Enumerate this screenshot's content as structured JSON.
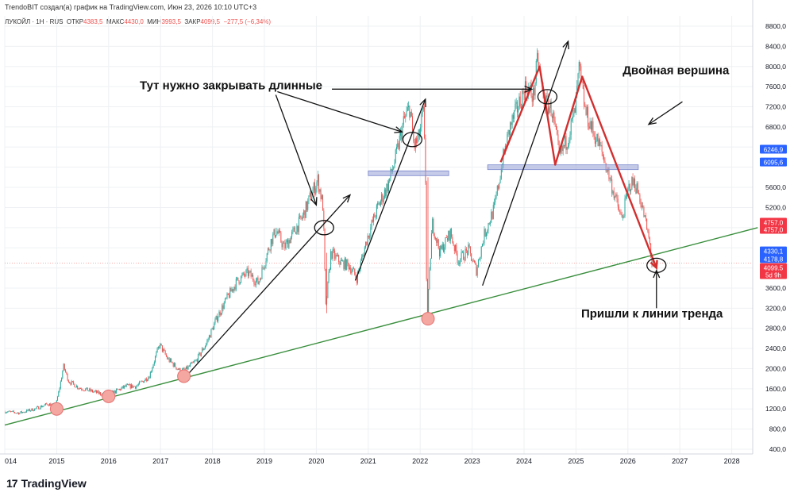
{
  "header": {
    "credit": "TrendoBIT создал(а) график на TradingView.com, Июн 23, 2026 10:10 UTC+3",
    "symbol": "ЛУКОЙЛ · 1Н · RUS",
    "open_label": "ОТКР",
    "open_value": "4383,5",
    "high_label": "МАКС",
    "high_value": "4430,0",
    "low_label": "МИН",
    "low_value": "3993,5",
    "close_label": "ЗАКР",
    "close_value": "4099,5",
    "change_value": "−277,5 (−6,34%)"
  },
  "footer": {
    "brand": "TradingView",
    "mark": "17"
  },
  "colors": {
    "up": "#26a69a",
    "down": "#ef5350",
    "trend_line": "#388e3c",
    "annotation": "#111111",
    "red_path": "#d32f2f",
    "support_band": "#9fa8da",
    "badge_blue": "#2962ff",
    "badge_red": "#f23645",
    "circle_fill": "#f4a6a0"
  },
  "chart_data": {
    "type": "candlestick",
    "title": "",
    "x_range": [
      2014.0,
      2028.5
    ],
    "y_range": [
      400,
      8800
    ],
    "x_ticks": [
      {
        "year": 2014,
        "label": "014"
      },
      {
        "year": 2015,
        "label": "2015"
      },
      {
        "year": 2016,
        "label": "2016"
      },
      {
        "year": 2017,
        "label": "2017"
      },
      {
        "year": 2018,
        "label": "2018"
      },
      {
        "year": 2019,
        "label": "2019"
      },
      {
        "year": 2020,
        "label": "2020"
      },
      {
        "year": 2021,
        "label": "2021"
      },
      {
        "year": 2022,
        "label": "2022"
      },
      {
        "year": 2023,
        "label": "2023"
      },
      {
        "year": 2024,
        "label": "2024"
      },
      {
        "year": 2025,
        "label": "2025"
      },
      {
        "year": 2026,
        "label": "2026"
      },
      {
        "year": 2027,
        "label": "2027"
      },
      {
        "year": 2028,
        "label": "2028"
      }
    ],
    "y_ticks": [
      {
        "value": 400,
        "label": "400,0"
      },
      {
        "value": 800,
        "label": "800,0"
      },
      {
        "value": 1200,
        "label": "1200,0"
      },
      {
        "value": 1600,
        "label": "1600,0"
      },
      {
        "value": 2000,
        "label": "2000,0"
      },
      {
        "value": 2400,
        "label": "2400,0"
      },
      {
        "value": 2800,
        "label": "2800,0"
      },
      {
        "value": 3200,
        "label": "3200,0"
      },
      {
        "value": 3600,
        "label": "3600,0"
      },
      {
        "value": 5200,
        "label": "5200,0"
      },
      {
        "value": 5600,
        "label": "5600,0"
      },
      {
        "value": 6400,
        "label": "6400,0"
      },
      {
        "value": 6800,
        "label": "6800,0"
      },
      {
        "value": 7200,
        "label": "7200,0"
      },
      {
        "value": 7600,
        "label": "7600,0"
      },
      {
        "value": 8000,
        "label": "8000,0"
      },
      {
        "value": 8400,
        "label": "8400,0"
      },
      {
        "value": 8800,
        "label": "8800,0"
      }
    ],
    "price_badges": [
      {
        "value": 6350,
        "label": "6246,9",
        "color": "blue"
      },
      {
        "value": 6095,
        "label": "6095,6",
        "color": "blue"
      },
      {
        "value": 4900,
        "label": "4757,0",
        "color": "red"
      },
      {
        "value": 4757,
        "label": "4757,0",
        "color": "red"
      },
      {
        "value": 4330,
        "label": "4330,1",
        "color": "blue"
      },
      {
        "value": 4178,
        "label": "4178,8",
        "color": "blue"
      },
      {
        "value": 4000,
        "label": "4099,5",
        "color": "red"
      },
      {
        "value": 3860,
        "label": "5d 9h",
        "color": "red"
      }
    ],
    "price_path": [
      [
        2014.0,
        1150
      ],
      [
        2014.3,
        1120
      ],
      [
        2014.6,
        1200
      ],
      [
        2014.85,
        1300
      ],
      [
        2015.0,
        1250
      ],
      [
        2015.08,
        1650
      ],
      [
        2015.15,
        2050
      ],
      [
        2015.25,
        1750
      ],
      [
        2015.45,
        1620
      ],
      [
        2015.7,
        1550
      ],
      [
        2015.95,
        1480
      ],
      [
        2016.1,
        1520
      ],
      [
        2016.35,
        1650
      ],
      [
        2016.55,
        1650
      ],
      [
        2016.8,
        1850
      ],
      [
        2017.0,
        2480
      ],
      [
        2017.15,
        2200
      ],
      [
        2017.4,
        1950
      ],
      [
        2017.5,
        1980
      ],
      [
        2017.7,
        2150
      ],
      [
        2017.9,
        2500
      ],
      [
        2018.1,
        3000
      ],
      [
        2018.3,
        3400
      ],
      [
        2018.5,
        3750
      ],
      [
        2018.7,
        3900
      ],
      [
        2018.9,
        3700
      ],
      [
        2019.15,
        4550
      ],
      [
        2019.25,
        4750
      ],
      [
        2019.4,
        4400
      ],
      [
        2019.55,
        4650
      ],
      [
        2019.75,
        5000
      ],
      [
        2019.9,
        5400
      ],
      [
        2020.05,
        5750
      ],
      [
        2020.15,
        5200
      ],
      [
        2020.2,
        3200
      ],
      [
        2020.3,
        4300
      ],
      [
        2020.5,
        4100
      ],
      [
        2020.65,
        4050
      ],
      [
        2020.8,
        3800
      ],
      [
        2021.0,
        4600
      ],
      [
        2021.2,
        5200
      ],
      [
        2021.4,
        5650
      ],
      [
        2021.55,
        6200
      ],
      [
        2021.7,
        6900
      ],
      [
        2021.82,
        7200
      ],
      [
        2021.9,
        6400
      ],
      [
        2022.0,
        6600
      ],
      [
        2022.08,
        7150
      ],
      [
        2022.12,
        5900
      ],
      [
        2022.15,
        2900
      ],
      [
        2022.25,
        4900
      ],
      [
        2022.4,
        4300
      ],
      [
        2022.6,
        4700
      ],
      [
        2022.75,
        4150
      ],
      [
        2022.95,
        4350
      ],
      [
        2023.1,
        3950
      ],
      [
        2023.25,
        4650
      ],
      [
        2023.45,
        5200
      ],
      [
        2023.6,
        6100
      ],
      [
        2023.75,
        6800
      ],
      [
        2023.9,
        7200
      ],
      [
        2024.05,
        7600
      ],
      [
        2024.2,
        7400
      ],
      [
        2024.28,
        8150
      ],
      [
        2024.4,
        7300
      ],
      [
        2024.55,
        7150
      ],
      [
        2024.7,
        6200
      ],
      [
        2024.85,
        6550
      ],
      [
        2025.0,
        7100
      ],
      [
        2025.08,
        7950
      ],
      [
        2025.2,
        7100
      ],
      [
        2025.35,
        6700
      ],
      [
        2025.5,
        6350
      ],
      [
        2025.65,
        5850
      ],
      [
        2025.8,
        5300
      ],
      [
        2025.9,
        4950
      ],
      [
        2026.05,
        5650
      ],
      [
        2026.15,
        5700
      ],
      [
        2026.25,
        5400
      ],
      [
        2026.35,
        4950
      ],
      [
        2026.45,
        4420
      ],
      [
        2026.48,
        4099
      ]
    ],
    "trend_line": {
      "from": [
        2014.0,
        880
      ],
      "to": [
        2028.5,
        4800
      ]
    },
    "support_bands": [
      {
        "from": 2021.0,
        "to": 2022.55,
        "value": 5880
      },
      {
        "from": 2023.3,
        "to": 2026.2,
        "value": 6000
      }
    ],
    "red_path": [
      [
        2023.55,
        6100
      ],
      [
        2024.3,
        8000
      ],
      [
        2024.6,
        6050
      ],
      [
        2025.12,
        7800
      ],
      [
        2026.55,
        4000
      ]
    ],
    "arrows": [
      {
        "from": [
          2017.45,
          1800
        ],
        "to": [
          2020.65,
          5450
        ]
      },
      {
        "from": [
          2020.75,
          3750
        ],
        "to": [
          2022.1,
          7350
        ]
      },
      {
        "from": [
          2023.2,
          3650
        ],
        "to": [
          2024.85,
          8500
        ]
      }
    ],
    "circles": [
      {
        "x": 2015.0,
        "y": 1200,
        "fill": true
      },
      {
        "x": 2016.0,
        "y": 1450,
        "fill": true
      },
      {
        "x": 2017.45,
        "y": 1850,
        "fill": true
      },
      {
        "x": 2022.15,
        "y": 2990,
        "fill": true
      },
      {
        "x": 2020.15,
        "y": 4800,
        "fill": false
      },
      {
        "x": 2021.85,
        "y": 6550,
        "fill": false
      },
      {
        "x": 2024.45,
        "y": 7400,
        "fill": false
      },
      {
        "x": 2026.55,
        "y": 4050,
        "fill": false
      }
    ],
    "annotations": [
      {
        "text": "Тут нужно закрывать длинные",
        "x": 2016.6,
        "y": 7550
      },
      {
        "text": "Двойная вершина",
        "x": 2025.9,
        "y": 7850
      },
      {
        "text": "Пришли к линии тренда",
        "x": 2025.1,
        "y": 3020
      }
    ]
  }
}
